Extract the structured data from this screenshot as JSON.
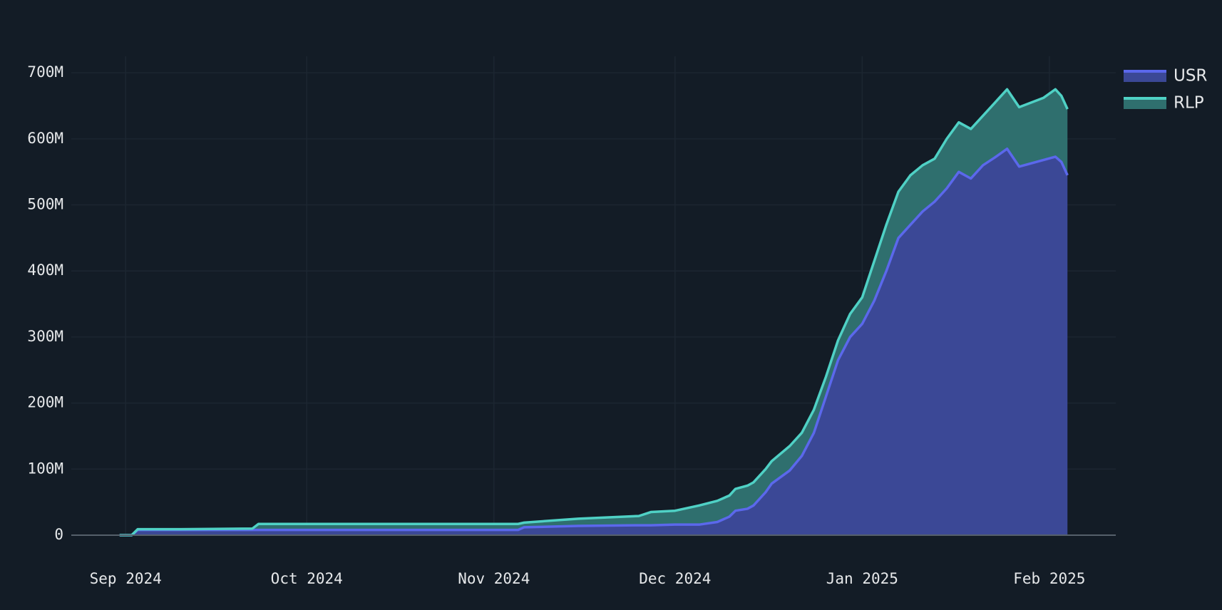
{
  "chart_data": {
    "type": "stacked-area",
    "x": [
      "2024-08-31",
      "2024-09-02",
      "2024-09-03",
      "2024-09-10",
      "2024-09-22",
      "2024-09-23",
      "2024-10-15",
      "2024-11-05",
      "2024-11-06",
      "2024-11-15",
      "2024-11-25",
      "2024-11-27",
      "2024-12-01",
      "2024-12-05",
      "2024-12-08",
      "2024-12-10",
      "2024-12-11",
      "2024-12-13",
      "2024-12-14",
      "2024-12-16",
      "2024-12-17",
      "2024-12-20",
      "2024-12-22",
      "2024-12-24",
      "2024-12-26",
      "2024-12-28",
      "2024-12-30",
      "2025-01-01",
      "2025-01-03",
      "2025-01-05",
      "2025-01-07",
      "2025-01-09",
      "2025-01-11",
      "2025-01-13",
      "2025-01-15",
      "2025-01-17",
      "2025-01-19",
      "2025-01-21",
      "2025-01-23",
      "2025-01-25",
      "2025-01-27",
      "2025-01-29",
      "2025-01-31",
      "2025-02-02",
      "2025-02-03",
      "2025-02-04"
    ],
    "series": [
      {
        "name": "USR",
        "color": "#5b68ec",
        "fill": "#3b4896",
        "values": [
          0,
          0,
          8000000.0,
          8000000.0,
          8000000.0,
          8000000.0,
          8000000.0,
          8000000.0,
          12000000.0,
          14000000.0,
          15000000.0,
          15000000.0,
          16000000.0,
          16000000.0,
          20000000.0,
          28000000.0,
          37000000.0,
          40000000.0,
          45000000.0,
          65000000.0,
          78000000.0,
          98000000.0,
          120000000.0,
          155000000.0,
          210000000.0,
          265000000.0,
          300000000.0,
          320000000.0,
          355000000.0,
          400000000.0,
          450000000.0,
          470000000.0,
          490000000.0,
          505000000.0,
          525000000.0,
          550000000.0,
          540000000.0,
          560000000.0,
          572000000.0,
          585000000.0,
          558000000.0,
          563000000.0,
          568000000.0,
          573000000.0,
          565000000.0,
          545000000.0
        ]
      },
      {
        "name": "RLP",
        "color": "#4fd1c5",
        "fill": "#2f6f6e",
        "values": [
          0,
          0,
          1000000.0,
          1000000.0,
          2000000.0,
          9000000.0,
          9000000.0,
          9000000.0,
          7000000.0,
          11000000.0,
          14000000.0,
          20000000.0,
          21000000.0,
          29000000.0,
          32000000.0,
          32000000.0,
          33000000.0,
          35000000.0,
          35000000.0,
          35000000.0,
          34000000.0,
          37000000.0,
          35000000.0,
          35000000.0,
          30000000.0,
          30000000.0,
          35000000.0,
          40000000.0,
          60000000.0,
          70000000.0,
          70000000.0,
          75000000.0,
          70000000.0,
          65000000.0,
          75000000.0,
          75000000.0,
          75000000.0,
          75000000.0,
          83000000.0,
          90000000.0,
          90000000.0,
          92000000.0,
          94000000.0,
          102000000.0,
          100000000.0,
          100000000.0
        ]
      }
    ],
    "xlim": [
      "2024-08-23",
      "2025-02-12"
    ],
    "xticks": [
      {
        "value": "2024-09-01",
        "label": "Sep 2024"
      },
      {
        "value": "2024-10-01",
        "label": "Oct 2024"
      },
      {
        "value": "2024-11-01",
        "label": "Nov 2024"
      },
      {
        "value": "2024-12-01",
        "label": "Dec 2024"
      },
      {
        "value": "2025-01-01",
        "label": "Jan 2025"
      },
      {
        "value": "2025-02-01",
        "label": "Feb 2025"
      }
    ],
    "ylim": [
      0,
      725000000
    ],
    "yticks": [
      0,
      {
        "value": 100000000,
        "label": "100M"
      },
      {
        "value": 200000000,
        "label": "200M"
      },
      {
        "value": 300000000,
        "label": "300M"
      },
      {
        "value": 400000000,
        "label": "400M"
      },
      {
        "value": 500000000,
        "label": "500M"
      },
      {
        "value": 600000000,
        "label": "600M"
      },
      {
        "value": 700000000,
        "label": "700M"
      }
    ],
    "grid": true,
    "legend": "top-right"
  }
}
